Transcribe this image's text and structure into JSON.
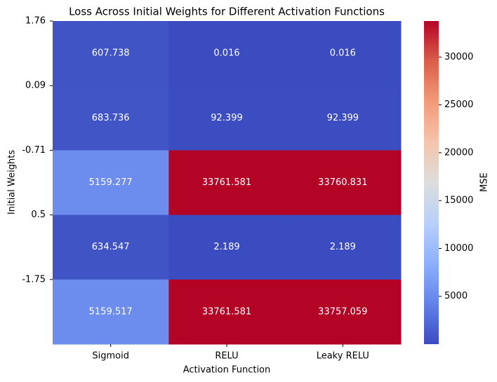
{
  "chart_data": {
    "type": "heatmap",
    "title": "Loss Across Initial Weights for Different Activation Functions",
    "x_label": "Activation Function",
    "y_label": "Initial Weights",
    "colorbar_label": "MSE",
    "columns": [
      "Sigmoid",
      "RELU",
      "Leaky RELU"
    ],
    "rows": [
      "1.76",
      "0.09",
      "-0.71",
      "0.5",
      "-1.75"
    ],
    "z": [
      [
        607.738,
        0.016,
        0.016
      ],
      [
        683.736,
        92.399,
        92.399
      ],
      [
        5159.277,
        33761.581,
        33760.831
      ],
      [
        634.547,
        2.189,
        2.189
      ],
      [
        5159.517,
        33761.581,
        33757.059
      ]
    ],
    "colormap": "coolwarm",
    "zlim": [
      0.016,
      33761.581
    ],
    "zticks": [
      5000,
      10000,
      15000,
      20000,
      25000,
      30000
    ]
  }
}
